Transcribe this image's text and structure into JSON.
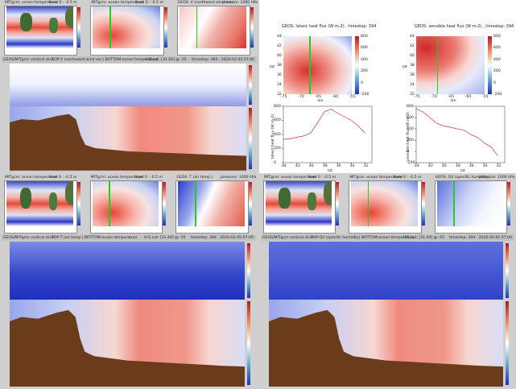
{
  "groups": [
    {
      "maps": [
        {
          "title": "MITgcm: ocean temperature",
          "level": "level 0 : -0.5 m"
        },
        {
          "title": "MITgcm: ocean temperature",
          "level": "level 0 : -0.5 m"
        },
        {
          "title": "GEOS: V (northward wind vel.)",
          "level": "pressure: 1000 hPa"
        }
      ],
      "slice": {
        "title": "GEOS/MITgcm vertical slice",
        "description": "TOP:V (northward wind vel.) BOTTOM:ocean temperature",
        "cut": "H-S cut: [31.44] @ -55",
        "timestep": "timestep: 394 : 2020-02-05 07:00"
      }
    },
    {
      "maps": [
        {
          "title": "MITgcm: ocean temperature",
          "level": "level 0 : -0.5 m"
        },
        {
          "title": "MITgcm: ocean temperature",
          "level": "level 0 : -0.5 m"
        },
        {
          "title": "GEOS: T (air temp.)",
          "level": "pressure: 1000 hPa"
        }
      ],
      "slice": {
        "title": "GEOS/MITgcm vertical slice",
        "description": "TOP:T (air temp.) BOTTOM:ocean temperature",
        "cut": "H-S cut: [31.44] @ -55",
        "timestep": "timestep: 394 : 2020-02-05 07:00"
      }
    },
    {
      "maps": [
        {
          "title": "MITgcm: ocean temperature",
          "level": "level 0 : -0.5 m"
        },
        {
          "title": "MITgcm: ocean temperature",
          "level": "level 0 : -0.5 m"
        },
        {
          "title": "GEOS: QV (specific humidity)",
          "level": "pressure: 1000 hPa"
        }
      ],
      "slice": {
        "title": "GEOS/MITgcm vertical slice",
        "description": "TOP:QV (specific humidity) BOTTOM:ocean temperature",
        "cut": "H-S cut: [31.44] @ -55",
        "timestep": "timestep: 394 : 2020-02-05 07:00"
      }
    }
  ],
  "flux_plots": [
    {
      "title": "GEOS: latent heat flux (W m-2) , timestep: 394",
      "map_xlabel": "lon",
      "map_ylabel": "lat",
      "lon_ticks": [
        -75,
        -70,
        -65,
        -60,
        -55
      ],
      "lat_ticks": [
        32,
        34,
        36,
        38,
        40,
        42,
        44
      ],
      "colorbar_ticks": [
        -200,
        0,
        200,
        400,
        600,
        800
      ],
      "line": {
        "xlabel": "lat",
        "ylabel": "latent heat flux (W m-2)",
        "x": [
          44,
          43,
          42,
          41,
          40,
          39,
          38,
          37,
          36,
          35,
          34,
          33,
          32
        ],
        "values": [
          330,
          340,
          360,
          380,
          420,
          560,
          720,
          760,
          700,
          650,
          600,
          520,
          420
        ],
        "xlim": [
          44,
          31
        ],
        "xticks": [
          44,
          42,
          40,
          38,
          36,
          34,
          32
        ],
        "ylim": [
          0,
          800
        ],
        "yticks": [
          0,
          200,
          400,
          600,
          800
        ],
        "color": "#c33"
      }
    },
    {
      "title": "GEOS: sensible heat flux (W m-2) , timestep: 394",
      "map_xlabel": "lon",
      "map_ylabel": "lat",
      "lon_ticks": [
        -75,
        -70,
        -65,
        -60,
        -55
      ],
      "lat_ticks": [
        32,
        34,
        36,
        38,
        40,
        42,
        44
      ],
      "colorbar_ticks": [
        -200,
        0,
        200,
        400,
        600,
        800
      ],
      "line": {
        "xlabel": "lat",
        "ylabel": "sensible heat flux (W m-2)",
        "x": [
          44,
          43,
          42,
          41,
          40,
          39,
          38,
          37,
          36,
          35,
          34,
          33,
          32
        ],
        "values": [
          760,
          700,
          600,
          500,
          450,
          430,
          400,
          380,
          300,
          250,
          150,
          80,
          -80
        ],
        "xlim": [
          44,
          31
        ],
        "xticks": [
          44,
          42,
          40,
          38,
          36,
          34,
          32
        ],
        "ylim": [
          -200,
          800
        ],
        "yticks": [
          -200,
          0,
          200,
          400,
          600,
          800
        ],
        "color": "#c33"
      }
    }
  ]
}
